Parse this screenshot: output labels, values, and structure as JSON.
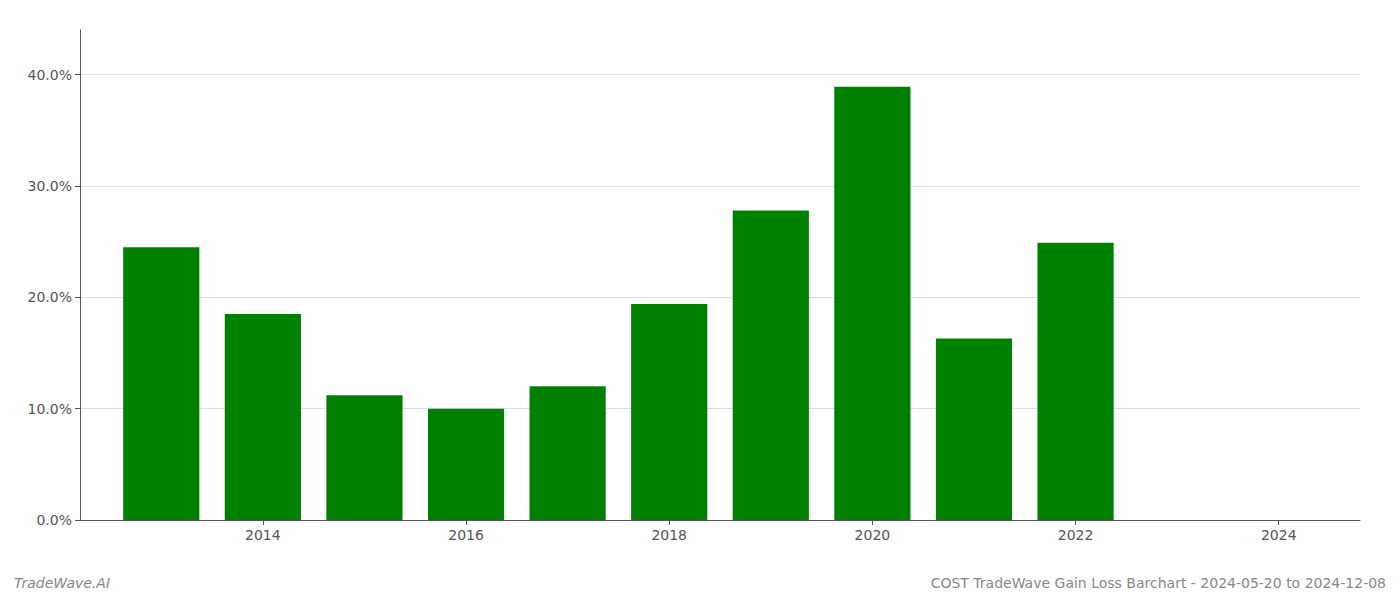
{
  "chart_data": {
    "type": "bar",
    "x": [
      2013,
      2014,
      2015,
      2016,
      2017,
      2018,
      2019,
      2020,
      2021,
      2022
    ],
    "values": [
      0.245,
      0.185,
      0.112,
      0.1,
      0.12,
      0.194,
      0.278,
      0.389,
      0.163,
      0.249
    ],
    "color": "#008000",
    "xlim": [
      2012.2,
      2024.8
    ],
    "xticks": [
      2014,
      2016,
      2018,
      2020,
      2022,
      2024
    ],
    "ylim": [
      0.0,
      0.44
    ],
    "yticks": [
      {
        "value": 0.0,
        "label": "0.0%"
      },
      {
        "value": 0.1,
        "label": "10.0%"
      },
      {
        "value": 0.2,
        "label": "20.0%"
      },
      {
        "value": 0.3,
        "label": "30.0%"
      },
      {
        "value": 0.4,
        "label": "40.0%"
      }
    ],
    "grid": true,
    "annotations": [
      "TradeWave.AI",
      "COST TradeWave Gain Loss Barchart - 2024-05-20 to 2024-12-08"
    ]
  }
}
